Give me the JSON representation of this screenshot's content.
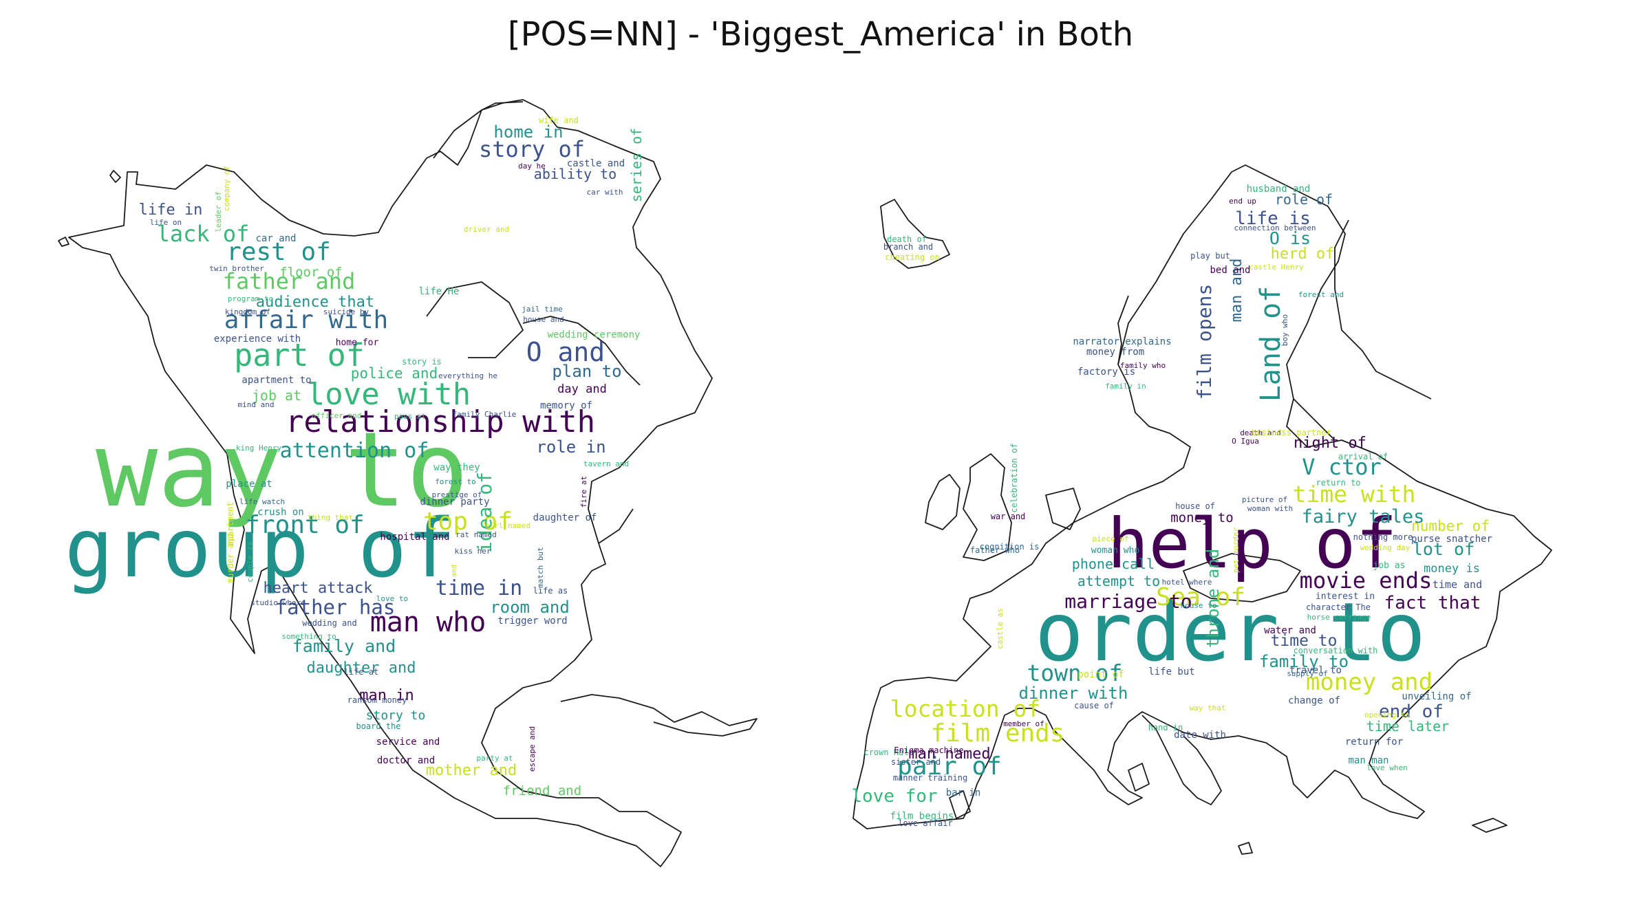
{
  "title": "[POS=NN] - 'Biggest_America' in Both",
  "palette": {
    "P": "#440154",
    "I": "#3b528b",
    "B": "#31688e",
    "T": "#21918c",
    "G": "#35b779",
    "L": "#5ec962",
    "Y": "#90d743",
    "K": "#c8e020",
    "E": "#fde725"
  },
  "maps": [
    {
      "name": "North America",
      "words": [
        {
          "t": "way to",
          "c": "L"
        },
        {
          "t": "group of",
          "c": "T"
        },
        {
          "t": "relationship with",
          "c": "P"
        },
        {
          "t": "love with",
          "c": "G"
        },
        {
          "t": "part of",
          "c": "G"
        },
        {
          "t": "affair with",
          "c": "B"
        },
        {
          "t": "rest of",
          "c": "T"
        },
        {
          "t": "father and",
          "c": "L"
        },
        {
          "t": "lack of",
          "c": "G"
        },
        {
          "t": "O and",
          "c": "I"
        },
        {
          "t": "man who",
          "c": "P"
        },
        {
          "t": "front of",
          "c": "T"
        },
        {
          "t": "top of",
          "c": "K"
        },
        {
          "t": "attention of",
          "c": "T"
        },
        {
          "t": "story of",
          "c": "I"
        },
        {
          "t": "audience that",
          "c": "T"
        },
        {
          "t": "father has",
          "c": "I"
        },
        {
          "t": "home in",
          "c": "T"
        },
        {
          "t": "life in",
          "c": "I"
        },
        {
          "t": "family and",
          "c": "T"
        },
        {
          "t": "daughter and",
          "c": "T"
        },
        {
          "t": "heart attack",
          "c": "I"
        },
        {
          "t": "room and",
          "c": "T"
        },
        {
          "t": "time in",
          "c": "I"
        },
        {
          "t": "idea of",
          "c": "G"
        },
        {
          "t": "man in",
          "c": "P"
        },
        {
          "t": "role in",
          "c": "I"
        },
        {
          "t": "plan to",
          "c": "B"
        },
        {
          "t": "ability to",
          "c": "I"
        },
        {
          "t": "series of",
          "c": "G"
        },
        {
          "t": "police and",
          "c": "G"
        },
        {
          "t": "floor of",
          "c": "L"
        },
        {
          "t": "job at",
          "c": "L"
        },
        {
          "t": "story to",
          "c": "T"
        },
        {
          "t": "mother and",
          "c": "K"
        },
        {
          "t": "friend and",
          "c": "L"
        },
        {
          "t": "day and",
          "c": "P"
        },
        {
          "t": "crush on",
          "c": "T"
        },
        {
          "t": "dinner party",
          "c": "I"
        },
        {
          "t": "hospital and",
          "c": "P"
        },
        {
          "t": "daughter of",
          "c": "I"
        },
        {
          "t": "memory of",
          "c": "I"
        },
        {
          "t": "wedding ceremony",
          "c": "L"
        },
        {
          "t": "service and",
          "c": "P"
        },
        {
          "t": "doctor and",
          "c": "P"
        },
        {
          "t": "trigger word",
          "c": "I"
        },
        {
          "t": "place at",
          "c": "T"
        },
        {
          "t": "life He",
          "c": "G"
        },
        {
          "t": "car and",
          "c": "B"
        },
        {
          "t": "castle and",
          "c": "I"
        },
        {
          "t": "apartment to",
          "c": "I"
        },
        {
          "t": "experience with",
          "c": "I"
        },
        {
          "t": "story is",
          "c": "G"
        },
        {
          "t": "way they",
          "c": "G"
        },
        {
          "t": "home for",
          "c": "P"
        },
        {
          "t": "wife and",
          "c": "K"
        },
        {
          "t": "leader of",
          "c": "L"
        },
        {
          "t": "company of",
          "c": "K"
        },
        {
          "t": "twin brother",
          "c": "I"
        },
        {
          "t": "kingdom of",
          "c": "I"
        },
        {
          "t": "program to",
          "c": "G"
        },
        {
          "t": "suicide by",
          "c": "I"
        },
        {
          "t": "jail time",
          "c": "B"
        },
        {
          "t": "house and",
          "c": "I"
        },
        {
          "t": "everything he",
          "c": "I"
        },
        {
          "t": "mind and",
          "c": "I"
        },
        {
          "t": "officer and",
          "c": "L"
        },
        {
          "t": "pass at",
          "c": "G"
        },
        {
          "t": "family Charlie",
          "c": "I"
        },
        {
          "t": "king Henry",
          "c": "G"
        },
        {
          "t": "forest to",
          "c": "T"
        },
        {
          "t": "prestige of",
          "c": "I"
        },
        {
          "t": "life watch",
          "c": "B"
        },
        {
          "t": "thing that",
          "c": "K"
        },
        {
          "t": "couple is",
          "c": "G"
        },
        {
          "t": "studio where",
          "c": "I"
        },
        {
          "t": "wedding and",
          "c": "I"
        },
        {
          "t": "something to",
          "c": "G"
        },
        {
          "t": "life at",
          "c": "I"
        },
        {
          "t": "ransom money",
          "c": "I"
        },
        {
          "t": "board the",
          "c": "T"
        },
        {
          "t": "party at",
          "c": "G"
        },
        {
          "t": "escape and",
          "c": "P"
        },
        {
          "t": "match but",
          "c": "B"
        },
        {
          "t": "life as",
          "c": "I"
        },
        {
          "t": "love to",
          "c": "T"
        },
        {
          "t": "kiss her",
          "c": "I"
        },
        {
          "t": "rat named",
          "c": "I"
        },
        {
          "t": "girl named",
          "c": "K"
        },
        {
          "t": "fire at",
          "c": "P"
        },
        {
          "t": "tavern and",
          "c": "G"
        },
        {
          "t": "day he",
          "c": "P"
        },
        {
          "t": "car with",
          "c": "I"
        },
        {
          "t": "driver and",
          "c": "K"
        },
        {
          "t": "life on",
          "c": "I"
        },
        {
          "t": "murder and",
          "c": "K"
        },
        {
          "t": "apartment",
          "c": "K"
        },
        {
          "t": "and",
          "c": "K"
        },
        {
          "t": "room when",
          "c": "T"
        }
      ]
    },
    {
      "name": "Europe",
      "words": [
        {
          "t": "order to",
          "c": "T"
        },
        {
          "t": "help of",
          "c": "P"
        },
        {
          "t": "Land of",
          "c": "T"
        },
        {
          "t": "town of",
          "c": "T"
        },
        {
          "t": "location of",
          "c": "K"
        },
        {
          "t": "film ends",
          "c": "K"
        },
        {
          "t": "pair of",
          "c": "T"
        },
        {
          "t": "movie ends",
          "c": "P"
        },
        {
          "t": "money and",
          "c": "K"
        },
        {
          "t": "time with",
          "c": "K"
        },
        {
          "t": "fairy tales",
          "c": "T"
        },
        {
          "t": "V ctor",
          "c": "T"
        },
        {
          "t": "Sea of",
          "c": "K"
        },
        {
          "t": "marriage to",
          "c": "P"
        },
        {
          "t": "fact that",
          "c": "P"
        },
        {
          "t": "throne and",
          "c": "G"
        },
        {
          "t": "film opens",
          "c": "I"
        },
        {
          "t": "man and",
          "c": "B"
        },
        {
          "t": "dinner with",
          "c": "T"
        },
        {
          "t": "love for",
          "c": "G"
        },
        {
          "t": "man named",
          "c": "P"
        },
        {
          "t": "time to",
          "c": "I"
        },
        {
          "t": "family to",
          "c": "T"
        },
        {
          "t": "end of",
          "c": "I"
        },
        {
          "t": "life is",
          "c": "I"
        },
        {
          "t": "O is",
          "c": "T"
        },
        {
          "t": "herd of",
          "c": "K"
        },
        {
          "t": "role of",
          "c": "B"
        },
        {
          "t": "night of",
          "c": "P"
        },
        {
          "t": "lot of",
          "c": "T"
        },
        {
          "t": "number of",
          "c": "K"
        },
        {
          "t": "money to",
          "c": "P"
        },
        {
          "t": "attempt to",
          "c": "T"
        },
        {
          "t": "phone call",
          "c": "T"
        },
        {
          "t": "time later",
          "c": "G"
        },
        {
          "t": "money is",
          "c": "T"
        },
        {
          "t": "purse snatcher",
          "c": "I"
        },
        {
          "t": "time and",
          "c": "I"
        },
        {
          "t": "water and",
          "c": "P"
        },
        {
          "t": "travel to",
          "c": "I"
        },
        {
          "t": "unveiling of",
          "c": "B"
        },
        {
          "t": "change of",
          "c": "I"
        },
        {
          "t": "return for",
          "c": "I"
        },
        {
          "t": "man man",
          "c": "T"
        },
        {
          "t": "film begins",
          "c": "G"
        },
        {
          "t": "bar in",
          "c": "B"
        },
        {
          "t": "date with",
          "c": "I"
        },
        {
          "t": "life but",
          "c": "I"
        },
        {
          "t": "point of",
          "c": "K"
        },
        {
          "t": "cause of",
          "c": "I"
        },
        {
          "t": "narrator explains",
          "c": "B"
        },
        {
          "t": "money from",
          "c": "I"
        },
        {
          "t": "factory is",
          "c": "I"
        },
        {
          "t": "husband and",
          "c": "G"
        },
        {
          "t": "connection between",
          "c": "I"
        },
        {
          "t": "play but",
          "c": "I"
        },
        {
          "t": "bed and",
          "c": "P"
        },
        {
          "t": "death of",
          "c": "G"
        },
        {
          "t": "branch and",
          "c": "I"
        },
        {
          "t": "cheating on",
          "c": "K"
        },
        {
          "t": "castle Henry",
          "c": "K"
        },
        {
          "t": "forest and",
          "c": "T"
        },
        {
          "t": "boy who",
          "c": "I"
        },
        {
          "t": "end up",
          "c": "P"
        },
        {
          "t": "family who",
          "c": "P"
        },
        {
          "t": "family in",
          "c": "G"
        },
        {
          "t": "death and",
          "c": "P"
        },
        {
          "t": "O Igua",
          "c": "P"
        },
        {
          "t": "business partner",
          "c": "K"
        },
        {
          "t": "arrival of",
          "c": "G"
        },
        {
          "t": "return to",
          "c": "G"
        },
        {
          "t": "celebration of",
          "c": "G"
        },
        {
          "t": "war and",
          "c": "P"
        },
        {
          "t": "father who",
          "c": "B"
        },
        {
          "t": "cognition is",
          "c": "B"
        },
        {
          "t": "piece of",
          "c": "K"
        },
        {
          "t": "woman who",
          "c": "T"
        },
        {
          "t": "hotel where",
          "c": "I"
        },
        {
          "t": "house to",
          "c": "T"
        },
        {
          "t": "house of",
          "c": "I"
        },
        {
          "t": "picture of",
          "c": "I"
        },
        {
          "t": "woman with",
          "c": "I"
        },
        {
          "t": "pet murder",
          "c": "K"
        },
        {
          "t": "nothing more",
          "c": "I"
        },
        {
          "t": "wedding day",
          "c": "K"
        },
        {
          "t": "job as",
          "c": "G"
        },
        {
          "t": "interest in",
          "c": "I"
        },
        {
          "t": "character The",
          "c": "I"
        },
        {
          "t": "horse carriage",
          "c": "G"
        },
        {
          "t": "conversation with",
          "c": "G"
        },
        {
          "t": "supply of",
          "c": "B"
        },
        {
          "t": "castle as",
          "c": "K"
        },
        {
          "t": "way that",
          "c": "K"
        },
        {
          "t": "member of",
          "c": "P"
        },
        {
          "t": "crown Hal",
          "c": "G"
        },
        {
          "t": "Enigma machine",
          "c": "P"
        },
        {
          "t": "sister and",
          "c": "I"
        },
        {
          "t": "manner training",
          "c": "I"
        },
        {
          "t": "love affair",
          "c": "I"
        },
        {
          "t": "hand in",
          "c": "G"
        },
        {
          "t": "opening to",
          "c": "K"
        },
        {
          "t": "love when",
          "c": "G"
        }
      ]
    }
  ]
}
